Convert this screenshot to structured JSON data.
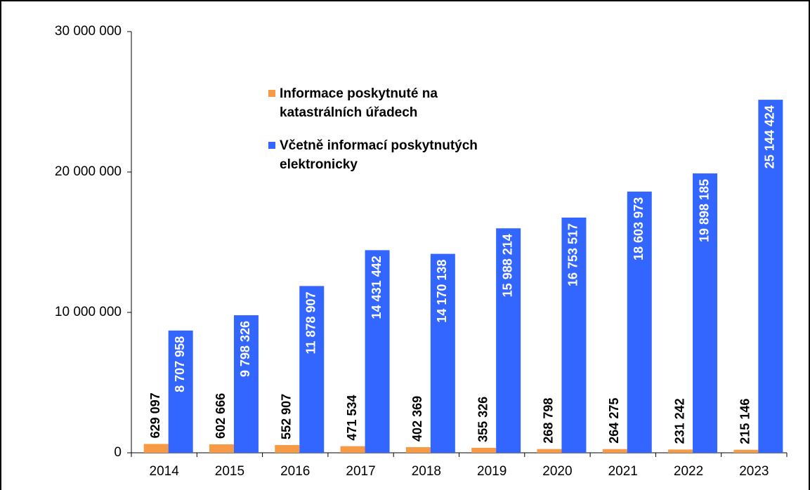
{
  "chart_data": {
    "type": "bar",
    "categories": [
      "2014",
      "2015",
      "2016",
      "2017",
      "2018",
      "2019",
      "2020",
      "2021",
      "2022",
      "2023"
    ],
    "series": [
      {
        "name": "Informace poskytnuté na katastrálních úřadech",
        "color": "#f79a46",
        "values": [
          629097,
          602666,
          552907,
          471534,
          402369,
          355326,
          268798,
          264275,
          231242,
          215146
        ],
        "value_labels": [
          "629 097",
          "602 666",
          "552 907",
          "471 534",
          "402 369",
          "355 326",
          "268 798",
          "264 275",
          "231 242",
          "215 146"
        ]
      },
      {
        "name": "Včetně informací poskytnutých elektronicky",
        "color": "#3366ff",
        "values": [
          8707958,
          9798326,
          11878907,
          14431442,
          14170138,
          15988214,
          16753517,
          18603973,
          19898185,
          25144424
        ],
        "value_labels": [
          "8 707 958",
          "9 798 326",
          "11 878 907",
          "14 431 442",
          "14 170 138",
          "15 988 214",
          "16 753 517",
          "18 603 973",
          "19 898 185",
          "25 144 424"
        ]
      }
    ],
    "ylim": [
      0,
      30000000
    ],
    "yticks": [
      {
        "value": 0,
        "label": "0"
      },
      {
        "value": 10000000,
        "label": "10 000 000"
      },
      {
        "value": 20000000,
        "label": "20 000 000"
      },
      {
        "value": 30000000,
        "label": "30 000 000"
      }
    ],
    "grid": false
  }
}
